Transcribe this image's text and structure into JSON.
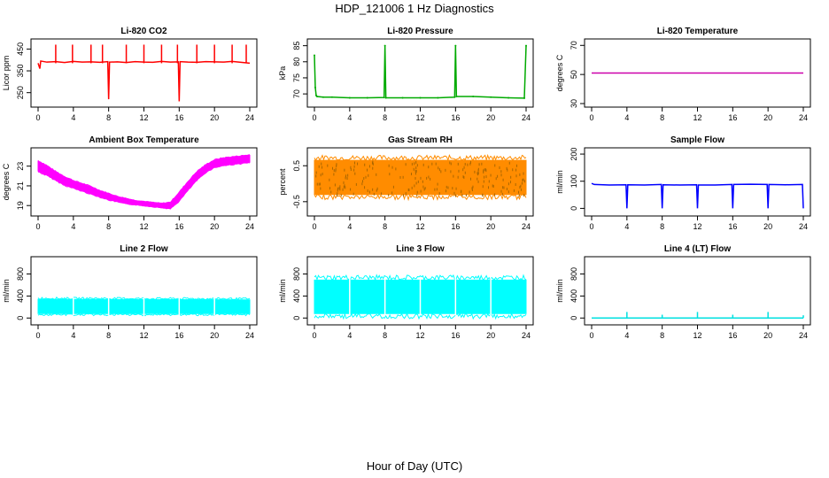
{
  "page": {
    "title": "HDP_121006  1 Hz Diagnostics",
    "xlabel": "Hour of Day (UTC)"
  },
  "chart_data": [
    {
      "id": "co2",
      "type": "line",
      "title": "Li-820 CO2",
      "ylabel": "Licor ppm",
      "color": "#ff0000",
      "xlim": [
        0,
        24
      ],
      "ylim": [
        200,
        480
      ],
      "yticks": [
        250,
        350,
        450
      ],
      "xticks": [
        0,
        4,
        8,
        12,
        16,
        20,
        24
      ],
      "series": [
        {
          "x": [
            0,
            0.2,
            0.3,
            1,
            2,
            3,
            4,
            5,
            6,
            7,
            7.9,
            8.0,
            8.1,
            9,
            10,
            11,
            12,
            13,
            14,
            15,
            15.9,
            16.0,
            16.1,
            17,
            18,
            19,
            20,
            21,
            22,
            23,
            24
          ],
          "y": [
            385,
            360,
            395,
            390,
            392,
            388,
            393,
            390,
            391,
            389,
            392,
            220,
            390,
            391,
            388,
            392,
            390,
            389,
            393,
            390,
            391,
            210,
            392,
            390,
            389,
            392,
            391,
            390,
            393,
            389,
            385
          ]
        }
      ],
      "spikes": [
        {
          "x": 2,
          "y": 470
        },
        {
          "x": 3.9,
          "y": 470
        },
        {
          "x": 6,
          "y": 470
        },
        {
          "x": 7.3,
          "y": 470
        },
        {
          "x": 10,
          "y": 470
        },
        {
          "x": 12,
          "y": 470
        },
        {
          "x": 14,
          "y": 470
        },
        {
          "x": 15.8,
          "y": 470
        },
        {
          "x": 18,
          "y": 470
        },
        {
          "x": 20,
          "y": 470
        },
        {
          "x": 22,
          "y": 470
        },
        {
          "x": 23.6,
          "y": 470
        }
      ],
      "band": null
    },
    {
      "id": "pressure",
      "type": "line",
      "title": "Li-820 Pressure",
      "ylabel": "kPa",
      "color": "#00aa00",
      "xlim": [
        0,
        24
      ],
      "ylim": [
        67,
        86
      ],
      "yticks": [
        70,
        75,
        80,
        85
      ],
      "xticks": [
        0,
        4,
        8,
        12,
        16,
        20,
        24
      ],
      "series": [
        {
          "x": [
            0,
            0.1,
            0.2,
            0.3,
            1,
            2,
            4,
            6,
            7.9,
            8,
            8.1,
            10,
            12,
            14,
            15.9,
            16,
            16.1,
            18,
            20,
            22,
            23.8,
            24
          ],
          "y": [
            82,
            72,
            69.5,
            69.2,
            69,
            69,
            68.8,
            68.8,
            68.9,
            85,
            68.8,
            68.8,
            68.8,
            68.8,
            69,
            85,
            69.2,
            69.2,
            69.0,
            68.8,
            68.7,
            85
          ]
        }
      ],
      "spikes": [],
      "band": null
    },
    {
      "id": "licor-temp",
      "type": "line",
      "title": "Li-820 Temperature",
      "ylabel": "degrees C",
      "color": "#cc00aa",
      "xlim": [
        0,
        24
      ],
      "ylim": [
        30,
        72
      ],
      "yticks": [
        30,
        50,
        70
      ],
      "xticks": [
        0,
        4,
        8,
        12,
        16,
        20,
        24
      ],
      "series": [
        {
          "x": [
            0,
            24
          ],
          "y": [
            51,
            51
          ]
        }
      ],
      "spikes": [],
      "band": null
    },
    {
      "id": "ambient-temp",
      "type": "area",
      "title": "Ambient Box Temperature",
      "ylabel": "degrees C",
      "color": "#ff00ff",
      "xlim": [
        0,
        24
      ],
      "ylim": [
        18.3,
        24.5
      ],
      "yticks": [
        19,
        21,
        23
      ],
      "xticks": [
        0,
        4,
        8,
        12,
        16,
        20,
        24
      ],
      "series": [],
      "spikes": [],
      "band": {
        "x": [
          0,
          1,
          2,
          3,
          4,
          5,
          6,
          7,
          8,
          9,
          10,
          11,
          12,
          13,
          14,
          15,
          16,
          17,
          18,
          19,
          20,
          21,
          22,
          23,
          24
        ],
        "lo": [
          22.5,
          22.1,
          21.6,
          21.1,
          20.8,
          20.5,
          20.2,
          19.9,
          19.6,
          19.4,
          19.2,
          19.1,
          19.0,
          18.9,
          18.8,
          18.7,
          19.5,
          20.6,
          21.6,
          22.4,
          22.9,
          23.1,
          23.2,
          23.3,
          23.4
        ],
        "hi": [
          23.5,
          23.0,
          22.4,
          21.9,
          21.5,
          21.2,
          20.9,
          20.5,
          20.2,
          19.9,
          19.7,
          19.5,
          19.4,
          19.3,
          19.2,
          19.3,
          20.3,
          21.4,
          22.4,
          23.1,
          23.6,
          23.8,
          23.9,
          24.0,
          24.1
        ]
      }
    },
    {
      "id": "gas-rh",
      "type": "area",
      "title": "Gas Stream RH",
      "ylabel": "percent",
      "color": "#ff8c00",
      "xlim": [
        0,
        24
      ],
      "ylim": [
        -0.8,
        0.9
      ],
      "yticks": [
        -0.5,
        0.5
      ],
      "xticks": [
        0,
        4,
        8,
        12,
        16,
        20,
        24
      ],
      "series": [],
      "spikes": [],
      "band": {
        "x": [
          0,
          24
        ],
        "lo": [
          -0.3,
          -0.3
        ],
        "hi": [
          0.65,
          0.65
        ]
      }
    },
    {
      "id": "sample-flow",
      "type": "line",
      "title": "Sample Flow",
      "ylabel": "ml/min",
      "color": "#0000ff",
      "xlim": [
        0,
        24
      ],
      "ylim": [
        -15,
        210
      ],
      "yticks": [
        0,
        100,
        200
      ],
      "xticks": [
        0,
        4,
        8,
        12,
        16,
        20,
        24
      ],
      "series": [
        {
          "x": [
            0,
            0.3,
            2,
            3.9,
            4.0,
            4.1,
            6,
            7.9,
            8.0,
            8.1,
            10,
            11.9,
            12.0,
            12.1,
            14,
            15.9,
            16.0,
            16.1,
            18,
            19.9,
            20.0,
            20.1,
            22,
            23.9,
            24.0
          ],
          "y": [
            92,
            88,
            86,
            87,
            0,
            87,
            86,
            88,
            0,
            87,
            86,
            87,
            0,
            86,
            86,
            88,
            0,
            88,
            89,
            88,
            0,
            88,
            87,
            88,
            0
          ]
        }
      ],
      "spikes": [],
      "band": null
    },
    {
      "id": "line2-flow",
      "type": "area",
      "title": "Line 2 Flow",
      "ylabel": "ml/min",
      "color": "#00ffff",
      "xlim": [
        0,
        24
      ],
      "ylim": [
        -60,
        1050
      ],
      "yticks": [
        0,
        400,
        800
      ],
      "xticks": [
        0,
        4,
        8,
        12,
        16,
        20,
        24
      ],
      "series": [],
      "spikes": [],
      "band": {
        "x": [
          0,
          24
        ],
        "lo": [
          80,
          80
        ],
        "hi": [
          340,
          330
        ]
      }
    },
    {
      "id": "line3-flow",
      "type": "area",
      "title": "Line 3 Flow",
      "ylabel": "ml/min",
      "color": "#00ffff",
      "xlim": [
        0,
        24
      ],
      "ylim": [
        -60,
        1050
      ],
      "yticks": [
        0,
        400,
        800
      ],
      "xticks": [
        0,
        4,
        8,
        12,
        16,
        20,
        24
      ],
      "series": [],
      "spikes": [],
      "band": {
        "x": [
          0,
          24
        ],
        "lo": [
          80,
          80
        ],
        "hi": [
          690,
          690
        ]
      }
    },
    {
      "id": "line4-flow",
      "type": "line",
      "title": "Line 4 (LT) Flow",
      "ylabel": "ml/min",
      "color": "#00e0e0",
      "xlim": [
        0,
        24
      ],
      "ylim": [
        -60,
        1050
      ],
      "yticks": [
        0,
        400,
        800
      ],
      "xticks": [
        0,
        4,
        8,
        12,
        16,
        20,
        24
      ],
      "series": [
        {
          "x": [
            0,
            24
          ],
          "y": [
            0,
            0
          ]
        }
      ],
      "spikes": [
        {
          "x": 4,
          "y": 110
        },
        {
          "x": 8,
          "y": 60
        },
        {
          "x": 12,
          "y": 110
        },
        {
          "x": 16,
          "y": 60
        },
        {
          "x": 20,
          "y": 110
        },
        {
          "x": 24,
          "y": 50
        }
      ],
      "band": null
    }
  ]
}
